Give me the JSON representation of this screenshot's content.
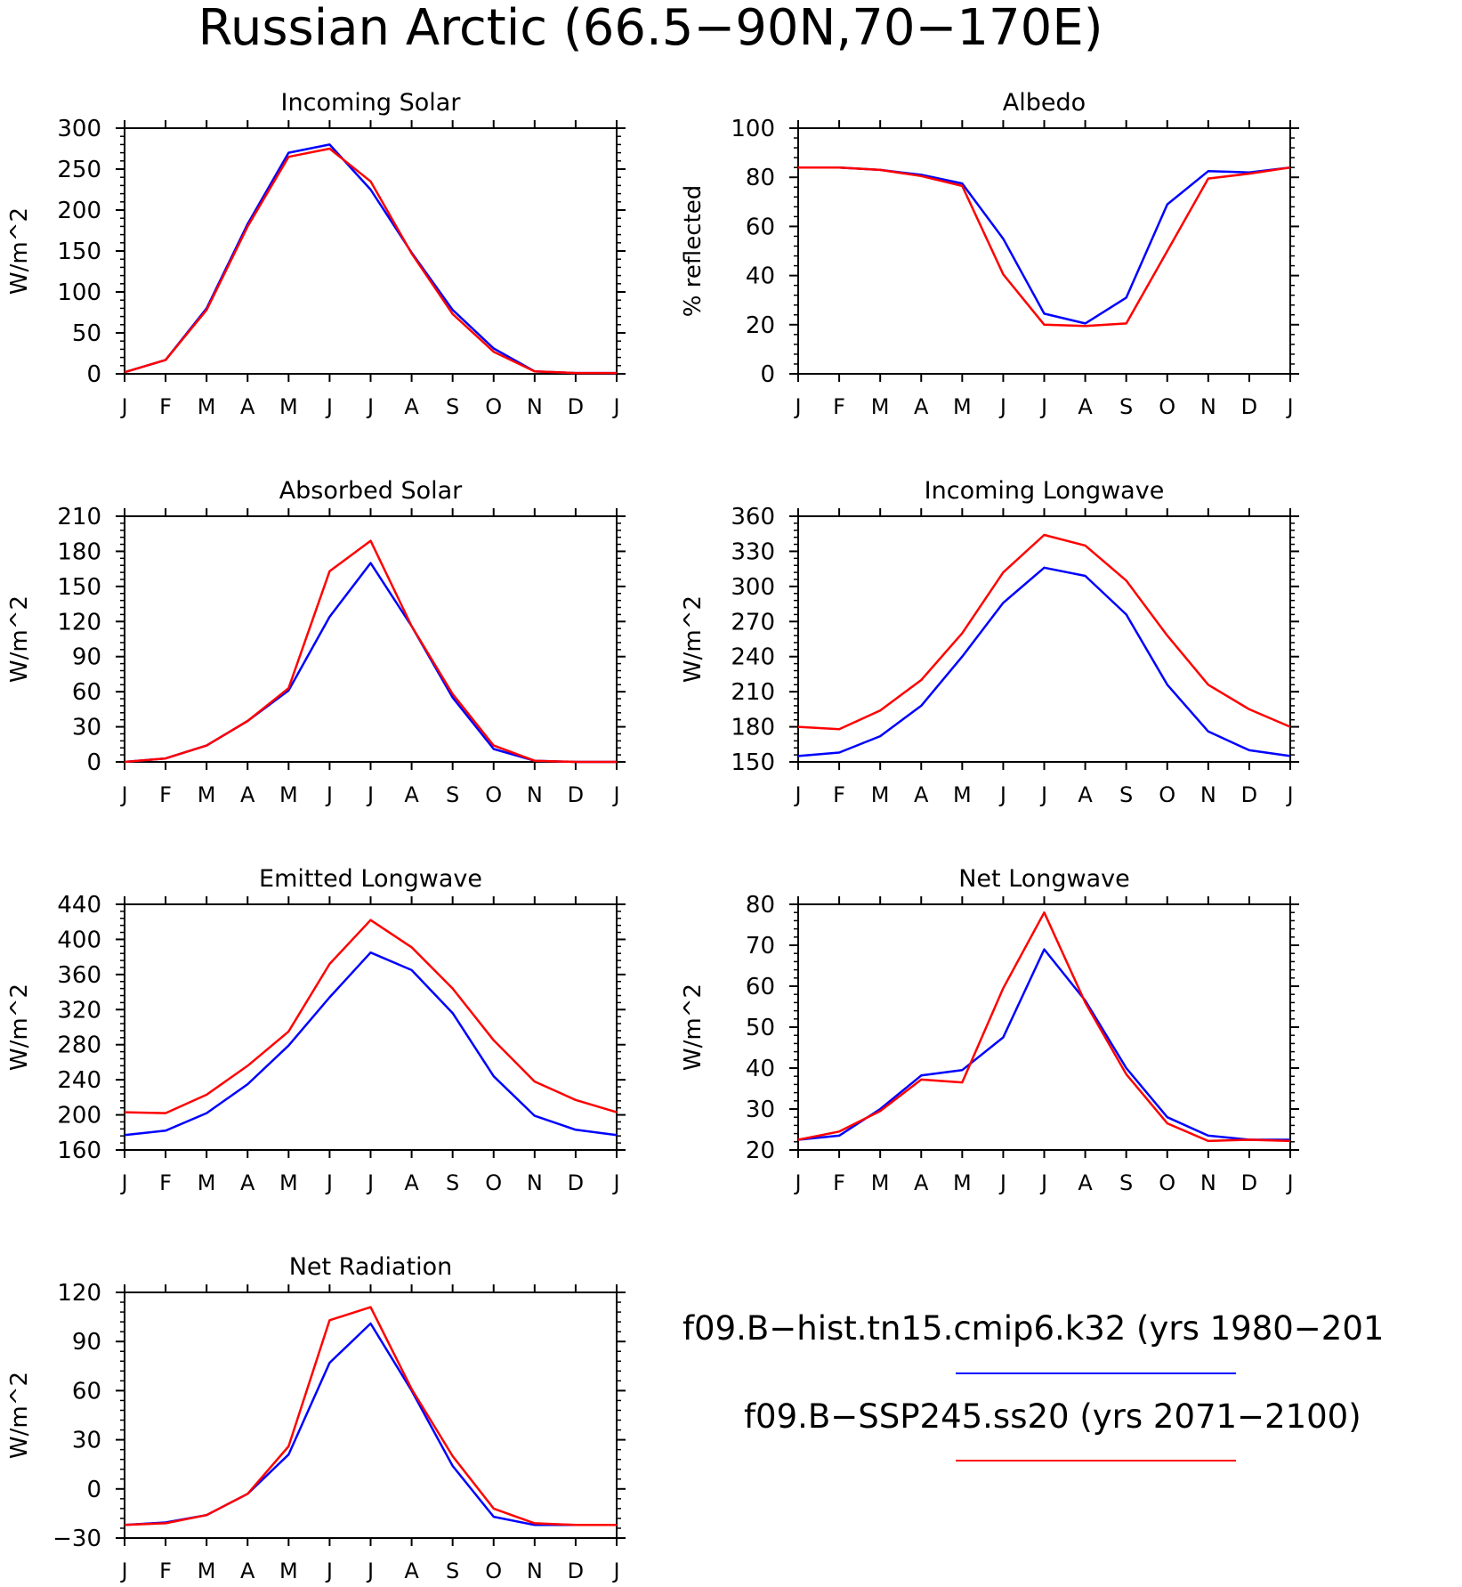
{
  "title": "Russian Arctic (66.5−90N,70−170E)",
  "months": [
    "J",
    "F",
    "M",
    "A",
    "M",
    "J",
    "J",
    "A",
    "S",
    "O",
    "N",
    "D",
    "J"
  ],
  "legend": [
    {
      "label": "f09.B−hist.tn15.cmip6.k32 (yrs 1980−201",
      "color": "#0000ff"
    },
    {
      "label": "f09.B−SSP245.ss20 (yrs 2071−2100)",
      "color": "#ff0000"
    }
  ],
  "chart_data": [
    {
      "type": "line",
      "title": "Incoming Solar",
      "ylabel": "W/m^2",
      "ylim": [
        0,
        300
      ],
      "yticks": [
        0,
        50,
        100,
        150,
        200,
        250,
        300
      ],
      "x": [
        "J",
        "F",
        "M",
        "A",
        "M",
        "J",
        "J",
        "A",
        "S",
        "O",
        "N",
        "D",
        "J"
      ],
      "series": [
        {
          "color": "#0000ff",
          "values": [
            2,
            17,
            80,
            183,
            270,
            280,
            225,
            148,
            78,
            31,
            3,
            1,
            1
          ]
        },
        {
          "color": "#ff0000",
          "values": [
            2,
            17,
            78,
            180,
            265,
            275,
            235,
            147,
            73,
            27,
            3,
            1,
            1
          ]
        }
      ]
    },
    {
      "type": "line",
      "title": "Albedo",
      "ylabel": "% reflected",
      "ylim": [
        0,
        100
      ],
      "yticks": [
        0,
        20,
        40,
        60,
        80,
        100
      ],
      "x": [
        "J",
        "F",
        "M",
        "A",
        "M",
        "J",
        "J",
        "A",
        "S",
        "O",
        "N",
        "D",
        "J"
      ],
      "series": [
        {
          "color": "#0000ff",
          "values": [
            84,
            84,
            83,
            81,
            77.5,
            55,
            24.5,
            20.5,
            31,
            69,
            82.5,
            82,
            84
          ]
        },
        {
          "color": "#ff0000",
          "values": [
            84,
            84,
            83,
            80.5,
            76.5,
            40.5,
            20,
            19.5,
            20.5,
            50,
            79.5,
            81.5,
            84
          ]
        }
      ]
    },
    {
      "type": "line",
      "title": "Absorbed Solar",
      "ylabel": "W/m^2",
      "ylim": [
        0,
        210
      ],
      "yticks": [
        0,
        30,
        60,
        90,
        120,
        150,
        180,
        210
      ],
      "x": [
        "J",
        "F",
        "M",
        "A",
        "M",
        "J",
        "J",
        "A",
        "S",
        "O",
        "N",
        "D",
        "J"
      ],
      "series": [
        {
          "color": "#0000ff",
          "values": [
            0,
            3,
            14,
            35,
            61,
            124,
            170,
            116,
            55,
            11,
            1,
            0,
            0
          ]
        },
        {
          "color": "#ff0000",
          "values": [
            0,
            3,
            14,
            35,
            63,
            163,
            189,
            116,
            58,
            14,
            1,
            0,
            0
          ]
        }
      ]
    },
    {
      "type": "line",
      "title": "Incoming Longwave",
      "ylabel": "W/m^2",
      "ylim": [
        150,
        360
      ],
      "yticks": [
        150,
        180,
        210,
        240,
        270,
        300,
        330,
        360
      ],
      "x": [
        "J",
        "F",
        "M",
        "A",
        "M",
        "J",
        "J",
        "A",
        "S",
        "O",
        "N",
        "D",
        "J"
      ],
      "series": [
        {
          "color": "#0000ff",
          "values": [
            155,
            158,
            172,
            198,
            240,
            286,
            316,
            309,
            276,
            216,
            176,
            160,
            155
          ]
        },
        {
          "color": "#ff0000",
          "values": [
            180,
            178,
            194,
            220,
            260,
            312,
            344,
            335,
            305,
            258,
            216,
            195,
            180
          ]
        }
      ]
    },
    {
      "type": "line",
      "title": "Emitted Longwave",
      "ylabel": "W/m^2",
      "ylim": [
        160,
        440
      ],
      "yticks": [
        160,
        200,
        240,
        280,
        320,
        360,
        400,
        440
      ],
      "x": [
        "J",
        "F",
        "M",
        "A",
        "M",
        "J",
        "J",
        "A",
        "S",
        "O",
        "N",
        "D",
        "J"
      ],
      "series": [
        {
          "color": "#0000ff",
          "values": [
            177,
            182,
            202,
            235,
            279,
            334,
            385,
            365,
            316,
            244,
            199,
            183,
            177
          ]
        },
        {
          "color": "#ff0000",
          "values": [
            203,
            202,
            223,
            256,
            295,
            372,
            422,
            391,
            344,
            285,
            238,
            217,
            203
          ]
        }
      ]
    },
    {
      "type": "line",
      "title": "Net Longwave",
      "ylabel": "W/m^2",
      "ylim": [
        20,
        80
      ],
      "yticks": [
        20,
        30,
        40,
        50,
        60,
        70,
        80
      ],
      "x": [
        "J",
        "F",
        "M",
        "A",
        "M",
        "J",
        "J",
        "A",
        "S",
        "O",
        "N",
        "D",
        "J"
      ],
      "series": [
        {
          "color": "#0000ff",
          "values": [
            22.5,
            23.5,
            30,
            38.2,
            39.5,
            47.5,
            69,
            56.5,
            40,
            28,
            23.5,
            22.5,
            22.5
          ]
        },
        {
          "color": "#ff0000",
          "values": [
            22.5,
            24.5,
            29.5,
            37.2,
            36.5,
            59.5,
            78,
            56,
            38.5,
            26.5,
            22.2,
            22.5,
            22.2
          ]
        }
      ]
    },
    {
      "type": "line",
      "title": "Net Radiation",
      "ylabel": "W/m^2",
      "ylim": [
        -30,
        120
      ],
      "yticks": [
        -30,
        0,
        30,
        60,
        90,
        120
      ],
      "x": [
        "J",
        "F",
        "M",
        "A",
        "M",
        "J",
        "J",
        "A",
        "S",
        "O",
        "N",
        "D",
        "J"
      ],
      "series": [
        {
          "color": "#0000ff",
          "values": [
            -22,
            -20.5,
            -16,
            -3,
            21,
            77,
            101,
            60,
            14,
            -17,
            -22,
            -22,
            -22
          ]
        },
        {
          "color": "#ff0000",
          "values": [
            -22,
            -21,
            -16,
            -3,
            26,
            103,
            111,
            61,
            20,
            -12,
            -21,
            -22,
            -22
          ]
        }
      ]
    }
  ]
}
